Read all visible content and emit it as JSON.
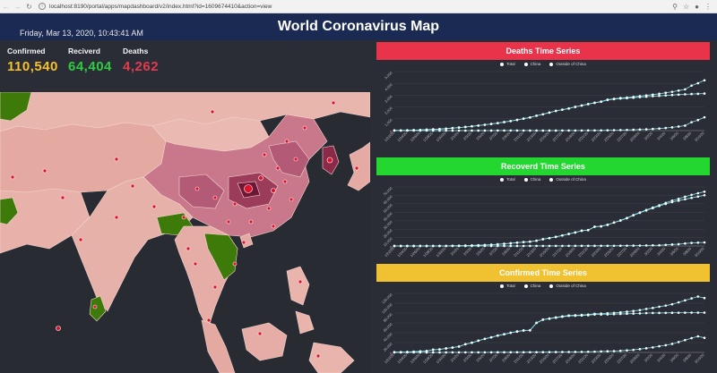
{
  "browser": {
    "url": "localhost:8190/portal/apps/mapdashboard/v2/index.html?id=1609674410&action=view",
    "back_icon": "back-arrow-icon",
    "forward_icon": "forward-arrow-icon",
    "reload_icon": "reload-icon"
  },
  "header": {
    "title": "World Coronavirus Map",
    "datetime": "Friday, Mar 13, 2020, 10:43:41 AM"
  },
  "stats": [
    {
      "label": "Confirmed",
      "value": "110,540",
      "color": "#f6c12c"
    },
    {
      "label": "Reciverd",
      "value": "64,404",
      "color": "#2ecc40"
    },
    {
      "label": "Deaths",
      "value": "4,262",
      "color": "#e23a4e"
    }
  ],
  "colors": {
    "deaths": "#e8334a",
    "recovered": "#23d630",
    "confirmed": "#f0c232",
    "line": "#7fe6f2",
    "land_light": "#eab8b0",
    "land_dark": "#8b2a48",
    "land_green": "#3d7a0a",
    "sea": "#292b33"
  },
  "legend": [
    "Total",
    "China",
    "Outside of China"
  ],
  "x_ticks": [
    "1/22/20",
    "1/24/20",
    "1/26/20",
    "1/28/20",
    "1/30/20",
    "2/1/20",
    "2/3/20",
    "2/5/20",
    "2/7/20",
    "2/9/20",
    "2/11/20",
    "2/13/20",
    "2/15/20",
    "2/17/20",
    "2/19/20",
    "2/21/20",
    "2/23/20",
    "2/25/20",
    "2/27/20",
    "2/29/20",
    "3/2/20",
    "3/4/20",
    "3/6/20",
    "3/8/20",
    "3/10/20"
  ],
  "chart_data": [
    {
      "type": "line",
      "title": "Deaths Time Series",
      "yticks": [
        "0",
        "1,000",
        "2,000",
        "3,000",
        "4,000",
        "5,000"
      ],
      "ylim": [
        0,
        5000
      ],
      "series": [
        {
          "name": "Total",
          "values": [
            17,
            18,
            26,
            42,
            56,
            82,
            106,
            132,
            170,
            213,
            259,
            304,
            362,
            426,
            492,
            565,
            638,
            724,
            813,
            910,
            1018,
            1115,
            1261,
            1383,
            1526,
            1669,
            1775,
            1873,
            2009,
            2126,
            2247,
            2360,
            2460,
            2618,
            2699,
            2763,
            2800,
            2858,
            2923,
            2977,
            3050,
            3117,
            3202,
            3285,
            3387,
            3494,
            3809,
            4012,
            4262
          ]
        },
        {
          "name": "China",
          "values": [
            17,
            18,
            26,
            42,
            56,
            82,
            106,
            132,
            170,
            213,
            259,
            304,
            361,
            425,
            490,
            562,
            632,
            717,
            805,
            904,
            1011,
            1111,
            1259,
            1380,
            1523,
            1665,
            1770,
            1868,
            2004,
            2118,
            2236,
            2345,
            2442,
            2592,
            2663,
            2715,
            2744,
            2788,
            2835,
            2870,
            2912,
            2943,
            2981,
            3013,
            3045,
            3073,
            3099,
            3119,
            3136
          ]
        },
        {
          "name": "Outside of China",
          "values": [
            0,
            0,
            0,
            0,
            0,
            0,
            0,
            0,
            0,
            0,
            0,
            0,
            1,
            1,
            2,
            3,
            6,
            7,
            8,
            6,
            7,
            4,
            2,
            3,
            3,
            4,
            5,
            5,
            5,
            8,
            11,
            15,
            18,
            26,
            36,
            48,
            56,
            70,
            88,
            107,
            138,
            174,
            221,
            272,
            342,
            421,
            710,
            893,
            1126
          ]
        }
      ]
    },
    {
      "type": "line",
      "title": "Recoverd Time Series",
      "yticks": [
        "0",
        "10,000",
        "20,000",
        "30,000",
        "40,000",
        "50,000",
        "60,000",
        "70,000"
      ],
      "ylim": [
        0,
        70000
      ],
      "series": [
        {
          "name": "Total",
          "values": [
            28,
            30,
            36,
            39,
            52,
            61,
            107,
            126,
            143,
            222,
            284,
            472,
            623,
            852,
            1124,
            1487,
            2011,
            2616,
            3244,
            3946,
            4683,
            5150,
            6295,
            8058,
            9395,
            10865,
            12583,
            14352,
            16121,
            18177,
            18890,
            22886,
            23394,
            25227,
            27905,
            30384,
            33277,
            36711,
            39782,
            42716,
            45602,
            48228,
            51171,
            53797,
            55866,
            58359,
            60695,
            62512,
            64404
          ]
        },
        {
          "name": "China",
          "values": [
            28,
            30,
            36,
            39,
            49,
            58,
            101,
            120,
            135,
            214,
            275,
            463,
            614,
            843,
            1115,
            1477,
            1999,
            2596,
            3219,
            3918,
            4636,
            5082,
            6217,
            7977,
            9298,
            10755,
            12462,
            14206,
            15962,
            18014,
            18704,
            22699,
            23187,
            24990,
            27650,
            30053,
            32898,
            36291,
            39279,
            42118,
            44810,
            47404,
            49856,
            52045,
            53726,
            55404,
            57065,
            58600,
            60181
          ]
        },
        {
          "name": "Outside of China",
          "values": [
            0,
            0,
            0,
            0,
            3,
            3,
            6,
            6,
            8,
            8,
            9,
            9,
            9,
            9,
            9,
            10,
            12,
            20,
            25,
            28,
            47,
            68,
            78,
            81,
            97,
            110,
            121,
            146,
            159,
            163,
            186,
            187,
            207,
            237,
            255,
            331,
            379,
            420,
            503,
            598,
            792,
            824,
            1315,
            1752,
            2140,
            2955,
            3630,
            3912,
            4223
          ]
        }
      ]
    },
    {
      "type": "line",
      "title": "Confirmed Time Series",
      "yticks": [
        "0",
        "20,000",
        "40,000",
        "60,000",
        "80,000",
        "100,000",
        "120,000"
      ],
      "ylim": [
        0,
        120000
      ],
      "series": [
        {
          "name": "Total",
          "values": [
            555,
            654,
            941,
            1434,
            2118,
            2927,
            5578,
            6166,
            8234,
            9927,
            12038,
            16787,
            19881,
            23892,
            27636,
            30818,
            34392,
            37121,
            40151,
            42763,
            44803,
            45222,
            60370,
            66887,
            69032,
            71226,
            73260,
            75138,
            75641,
            76199,
            76843,
            78599,
            78985,
            79570,
            80415,
            81397,
            82756,
            84124,
            86013,
            88371,
            90309,
            92844,
            95124,
            97886,
            101800,
            105836,
            109835,
            113583,
            110540
          ]
        },
        {
          "name": "China",
          "values": [
            548,
            643,
            920,
            1406,
            2075,
            2877,
            5509,
            6087,
            8141,
            9802,
            11891,
            16630,
            19716,
            23707,
            27440,
            30587,
            34110,
            36814,
            39829,
            42354,
            44386,
            44759,
            59895,
            66358,
            68413,
            70513,
            72434,
            74211,
            74619,
            75077,
            75550,
            77001,
            77022,
            77241,
            77754,
            78166,
            78600,
            78928,
            79356,
            79932,
            80136,
            80261,
            80386,
            80537,
            80690,
            80770,
            80823,
            80860,
            80887
          ]
        },
        {
          "name": "Outside of China",
          "values": [
            7,
            11,
            21,
            28,
            43,
            50,
            69,
            79,
            93,
            125,
            147,
            157,
            165,
            185,
            196,
            231,
            282,
            307,
            322,
            409,
            417,
            463,
            475,
            529,
            619,
            713,
            826,
            927,
            1022,
            1122,
            1293,
            1598,
            1963,
            2329,
            2661,
            3231,
            4156,
            5196,
            6657,
            8439,
            10173,
            12583,
            14738,
            17349,
            21110,
            25066,
            29012,
            32723,
            29653
          ]
        }
      ]
    }
  ]
}
